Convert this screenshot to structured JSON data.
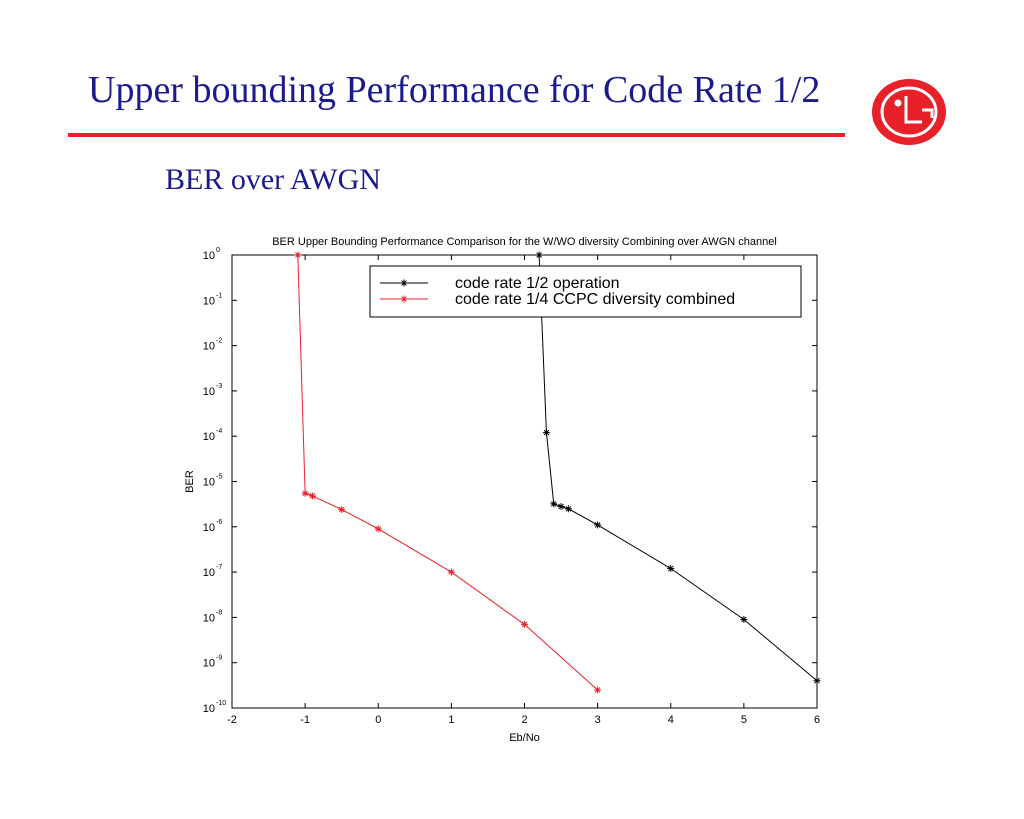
{
  "slide": {
    "title": "Upper bounding Performance for Code Rate 1/2",
    "subtitle": "BER over AWGN"
  },
  "logo": {
    "icon": "lg-logo",
    "text": "LG",
    "color": "#e8202a"
  },
  "colors": {
    "title": "#1a1a8c",
    "rule": "#e8202a",
    "series_black": "#000000",
    "series_red": "#e8202a"
  },
  "chart_data": {
    "type": "line",
    "title": "BER Upper Bounding Performance Comparison for the W/WO diversity Combining over AWGN channel",
    "xlabel": "Eb/No",
    "ylabel": "BER",
    "xlim": [
      -2,
      6
    ],
    "ylim": [
      1e-10,
      1
    ],
    "yscale": "log",
    "grid": false,
    "legend_position": "top-right",
    "x_ticks": [
      "-2",
      "-1",
      "0",
      "1",
      "2",
      "3",
      "4",
      "5",
      "6"
    ],
    "y_ticks": [
      {
        "base": "10",
        "exp": "0"
      },
      {
        "base": "10",
        "exp": "-1"
      },
      {
        "base": "10",
        "exp": "-2"
      },
      {
        "base": "10",
        "exp": "-3"
      },
      {
        "base": "10",
        "exp": "-4"
      },
      {
        "base": "10",
        "exp": "-5"
      },
      {
        "base": "10",
        "exp": "-6"
      },
      {
        "base": "10",
        "exp": "-7"
      },
      {
        "base": "10",
        "exp": "-8"
      },
      {
        "base": "10",
        "exp": "-9"
      },
      {
        "base": "10",
        "exp": "-10"
      }
    ],
    "series": [
      {
        "name": "code rate 1/2 operation",
        "color": "#000000",
        "x": [
          2.2,
          2.3,
          2.4,
          2.5,
          2.6,
          3,
          4,
          5,
          6
        ],
        "y": [
          1,
          0.00012,
          3.2e-06,
          2.8e-06,
          2.5e-06,
          1.1e-06,
          1.2e-07,
          9e-09,
          4e-10
        ]
      },
      {
        "name": "code rate 1/4 CCPC diversity combined",
        "color": "#e8202a",
        "x": [
          -1.1,
          -1,
          -0.9,
          -0.5,
          0,
          1,
          2,
          3
        ],
        "y": [
          1,
          5.5e-06,
          4.8e-06,
          2.4e-06,
          9e-07,
          1e-07,
          7e-09,
          2.5e-10
        ]
      }
    ]
  }
}
